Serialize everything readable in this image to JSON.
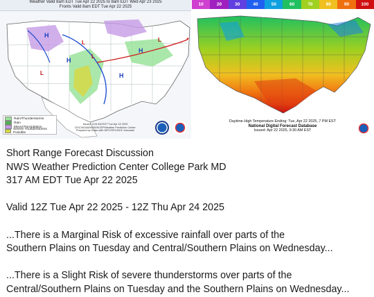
{
  "left_map": {
    "title_line1": "Weather Valid 8am EDT Tue Apr 22 2025 to 8am EDT Wed Apr 23 2025",
    "title_line2": "Fronts Valid 8am EDT Tue Apr 22 2025",
    "legend": [
      {
        "label": "Rain/Thunderstorms",
        "color": "#9be39b"
      },
      {
        "label": "Rain",
        "color": "#4fb04f"
      },
      {
        "label": "Mixed Precipitation",
        "color": "#c59be6"
      },
      {
        "label": "Severe Thunderstorms Possible",
        "color": "#d8d840"
      }
    ],
    "footer_line1": "Issued: 4:04 AM EDT Tue Apr 22 2025",
    "footer_line2": "DOC/NOAA/NWS/NCEP/Weather Prediction Center",
    "footer_line3": "Prepared by Dolan with WPC/SPC/NHC forecasts",
    "pressure_labels": [
      "H",
      "H",
      "L",
      "L",
      "L",
      "L",
      "H",
      "H"
    ]
  },
  "right_map": {
    "colorbar": [
      "10",
      "20",
      "30",
      "40",
      "50",
      "60",
      "70",
      "80",
      "90",
      "100"
    ],
    "caption_line1": "Daytime High Temperature Ending: Tue, Apr 22 2025, 7 PM EST",
    "caption_line2": "National Digital Forecast Database",
    "caption_line3": "Issued: Apr 22 2025, 9:30 AM EST"
  },
  "discussion": {
    "line1": "Short Range Forecast Discussion",
    "line2": "NWS Weather Prediction Center College Park MD",
    "line3": "317 AM EDT Tue Apr 22 2025",
    "valid": "Valid 12Z Tue Apr 22 2025 - 12Z Thu Apr 24 2025",
    "para1_line1": "...There is a Marginal Risk of excessive rainfall over parts of the",
    "para1_line2": "Southern Plains on Tuesday and Central/Southern Plains on Wednesday...",
    "para2_line1": "...There is a Slight Risk of severe thunderstorms over parts of the",
    "para2_line2": "Central/Southern Plains on Tuesday and the Southern Plains on Wednesday..."
  },
  "colors": {
    "colorbar": [
      "#d040d0",
      "#a020c0",
      "#6040e0",
      "#2060f0",
      "#10a0e0",
      "#20c060",
      "#a0d020",
      "#f0c020",
      "#f07010",
      "#d01010"
    ]
  },
  "icons": [
    "noaa-logo-icon",
    "nws-logo-icon"
  ]
}
